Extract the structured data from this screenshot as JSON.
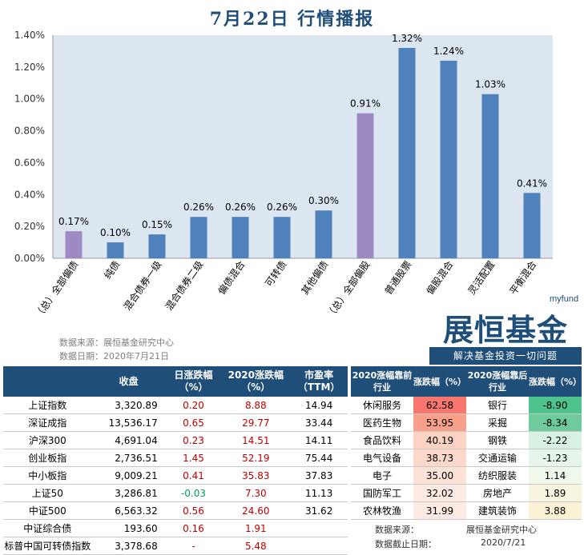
{
  "title": "7月22日  行情播报",
  "chart_data": {
    "type": "bar",
    "categories": [
      "（总）全部偏债",
      "纯债",
      "混合债券一级",
      "混合债券二级",
      "偏债混合",
      "可转债",
      "其他偏债",
      "（总）全部偏股",
      "普通股票",
      "偏股混合",
      "灵活配置",
      "平衡混合"
    ],
    "values": [
      0.17,
      0.1,
      0.15,
      0.26,
      0.26,
      0.26,
      0.3,
      0.91,
      1.32,
      1.24,
      1.03,
      0.41
    ],
    "data_labels": [
      "0.17%",
      "0.10%",
      "0.15%",
      "0.26%",
      "0.26%",
      "0.26%",
      "0.30%",
      "0.91%",
      "1.32%",
      "1.24%",
      "1.03%",
      "0.41%"
    ],
    "highlight_categories": [
      "（总）全部偏债",
      "（总）全部偏股"
    ],
    "yticks": [
      "0.00%",
      "0.20%",
      "0.40%",
      "0.60%",
      "0.80%",
      "1.00%",
      "1.20%",
      "1.40%"
    ],
    "ylim": [
      0,
      1.4
    ],
    "grid": false,
    "bar_color": "#4f81bd",
    "highlight_color": "#9e8ac2",
    "plot_bg": "#dce6f1"
  },
  "source": {
    "line1": "数据来源：展恒基金研究中心",
    "line2": "数据日期：2020年7月21日"
  },
  "logo": {
    "small": "myfund",
    "big": "展恒基金",
    "slogan": "解决基金投资一切问题"
  },
  "index_table": {
    "headers": [
      "",
      "收盘",
      "日涨跌幅（%）",
      "2020涨跌幅（%）",
      "市盈率（TTM）"
    ],
    "rows": [
      {
        "name": "上证指数",
        "close": "3,320.89",
        "day": "0.20",
        "ytd": "8.88",
        "pe": "14.94"
      },
      {
        "name": "深证成指",
        "close": "13,536.17",
        "day": "0.65",
        "ytd": "29.77",
        "pe": "33.44"
      },
      {
        "name": "沪深300",
        "close": "4,691.04",
        "day": "0.23",
        "ytd": "14.51",
        "pe": "14.11"
      },
      {
        "name": "创业板指",
        "close": "2,736.51",
        "day": "1.45",
        "ytd": "52.19",
        "pe": "75.44"
      },
      {
        "name": "中小板指",
        "close": "9,009.21",
        "day": "0.41",
        "ytd": "35.83",
        "pe": "37.83"
      },
      {
        "name": "上证50",
        "close": "3,286.81",
        "day": "-0.03",
        "ytd": "7.30",
        "pe": "11.13"
      },
      {
        "name": "中证500",
        "close": "6,563.32",
        "day": "0.56",
        "ytd": "24.60",
        "pe": "31.62"
      },
      {
        "name": "中证综合债",
        "close": "193.60",
        "day": "0.16",
        "ytd": "1.91",
        "pe": ""
      },
      {
        "name": "标普中国可转债指数",
        "close": "3,378.68",
        "day": "-",
        "ytd": "5.48",
        "pe": ""
      }
    ]
  },
  "industry_table": {
    "headers": [
      "2020涨幅靠前行业",
      "涨跌幅（%）",
      "2020涨幅靠后行业",
      "涨跌幅（%）"
    ],
    "rows": [
      {
        "top": "休闲服务",
        "top_val": "62.58",
        "top_color": "#f8766d",
        "bot": "银行",
        "bot_val": "-8.90",
        "bot_color": "#4fc38e"
      },
      {
        "top": "医药生物",
        "top_val": "53.95",
        "top_color": "#f9a08a",
        "bot": "采掘",
        "bot_val": "-8.34",
        "bot_color": "#6fcb9b"
      },
      {
        "top": "食品饮料",
        "top_val": "40.19",
        "top_color": "#fcd3c3",
        "bot": "钢铁",
        "bot_val": "-2.22",
        "bot_color": "#d8f1e3"
      },
      {
        "top": "电气设备",
        "top_val": "38.73",
        "top_color": "#fcd8ca",
        "bot": "交通运输",
        "bot_val": "-1.23",
        "bot_color": "#e6f5ec"
      },
      {
        "top": "电子",
        "top_val": "35.00",
        "top_color": "#fde2d8",
        "bot": "纺织服装",
        "bot_val": "1.14",
        "bot_color": "#f0f8ec"
      },
      {
        "top": "国防军工",
        "top_val": "32.02",
        "top_color": "#fdebe3",
        "bot": "房地产",
        "bot_val": "1.89",
        "bot_color": "#f7f4e0"
      },
      {
        "top": "农林牧渔",
        "top_val": "31.99",
        "top_color": "#fdebe3",
        "bot": "建筑装饰",
        "bot_val": "3.88",
        "bot_color": "#fbf2d6"
      }
    ],
    "footer_label1": "数据来源：",
    "footer_value1": "展恒基金研究中心",
    "footer_label2": "数据截止日期：",
    "footer_value2": "2020/7/21"
  }
}
